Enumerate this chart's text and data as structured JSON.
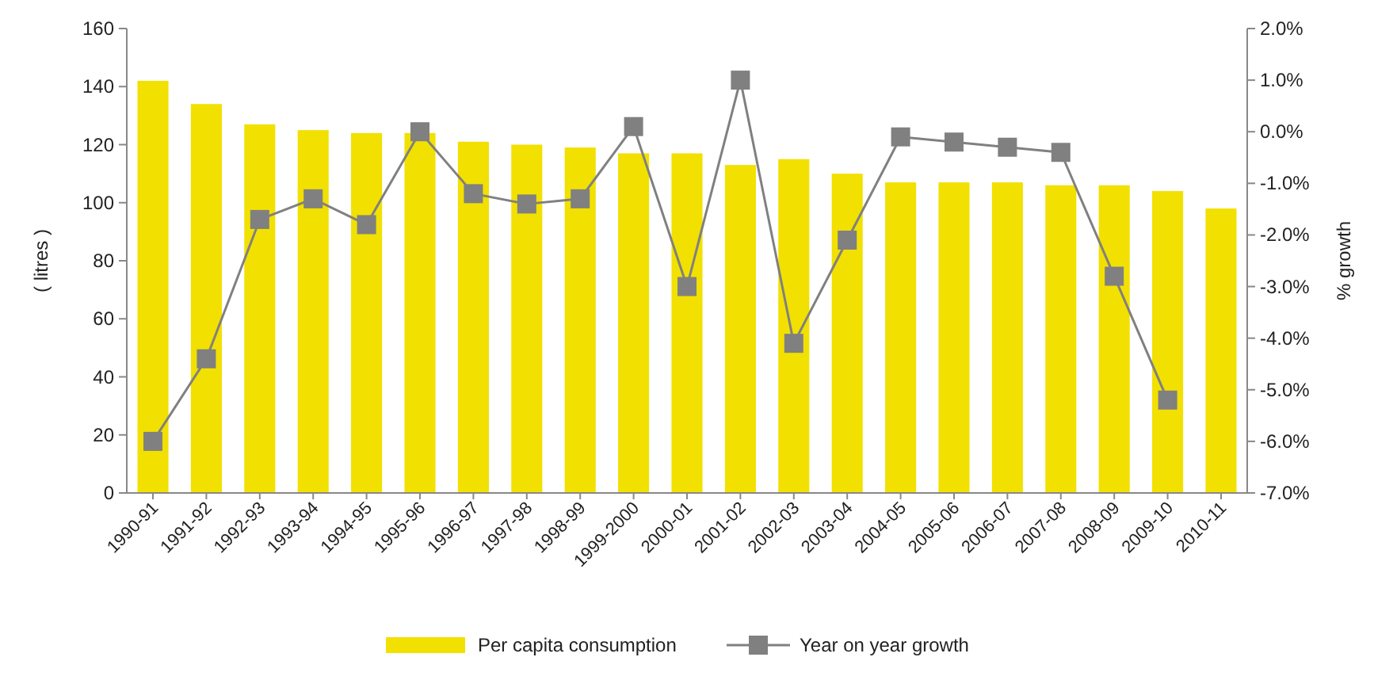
{
  "chart_data": {
    "type": "bar",
    "categories": [
      "1990-91",
      "1991-92",
      "1992-93",
      "1993-94",
      "1994-95",
      "1995-96",
      "1996-97",
      "1997-98",
      "1998-99",
      "1999-2000",
      "2000-01",
      "2001-02",
      "2002-03",
      "2003-04",
      "2004-05",
      "2005-06",
      "2006-07",
      "2007-08",
      "2008-09",
      "2009-10",
      "2010-11"
    ],
    "series": [
      {
        "name": "Per capita consumption",
        "color": "#f2e000",
        "values": [
          142,
          134,
          127,
          125,
          124,
          124,
          121,
          120,
          119,
          117,
          117,
          113,
          115,
          110,
          107,
          107,
          107,
          106,
          106,
          104,
          98
        ]
      },
      {
        "name": "Year on year growth",
        "type": "line",
        "axis": "y2",
        "color": "#808080",
        "marker": "square",
        "values": [
          -6.0,
          -4.4,
          -1.7,
          -1.3,
          -1.8,
          0.0,
          -1.2,
          -1.4,
          -1.3,
          0.1,
          -3.0,
          1.0,
          -4.1,
          -2.1,
          -0.1,
          -0.2,
          -0.3,
          -0.4,
          -2.8,
          -5.2,
          null
        ]
      }
    ],
    "ylabel": "( litres )",
    "y2label": "% growth",
    "ylim": [
      0,
      160
    ],
    "yticks": [
      0,
      20,
      40,
      60,
      80,
      100,
      120,
      140,
      160
    ],
    "y2lim": [
      -7,
      2
    ],
    "y2ticks": [
      {
        "value": -7,
        "label": "-7.0%"
      },
      {
        "value": -6,
        "label": "-6.0%"
      },
      {
        "value": -5,
        "label": "-5.0%"
      },
      {
        "value": -4,
        "label": "-4.0%"
      },
      {
        "value": -3,
        "label": "-3.0%"
      },
      {
        "value": -2,
        "label": "-2.0%"
      },
      {
        "value": -1,
        "label": "-1.0%"
      },
      {
        "value": 0,
        "label": "0.0%"
      },
      {
        "value": 1,
        "label": "1.0%"
      },
      {
        "value": 2,
        "label": "2.0%"
      }
    ],
    "grid": false,
    "legend": "bottom"
  }
}
